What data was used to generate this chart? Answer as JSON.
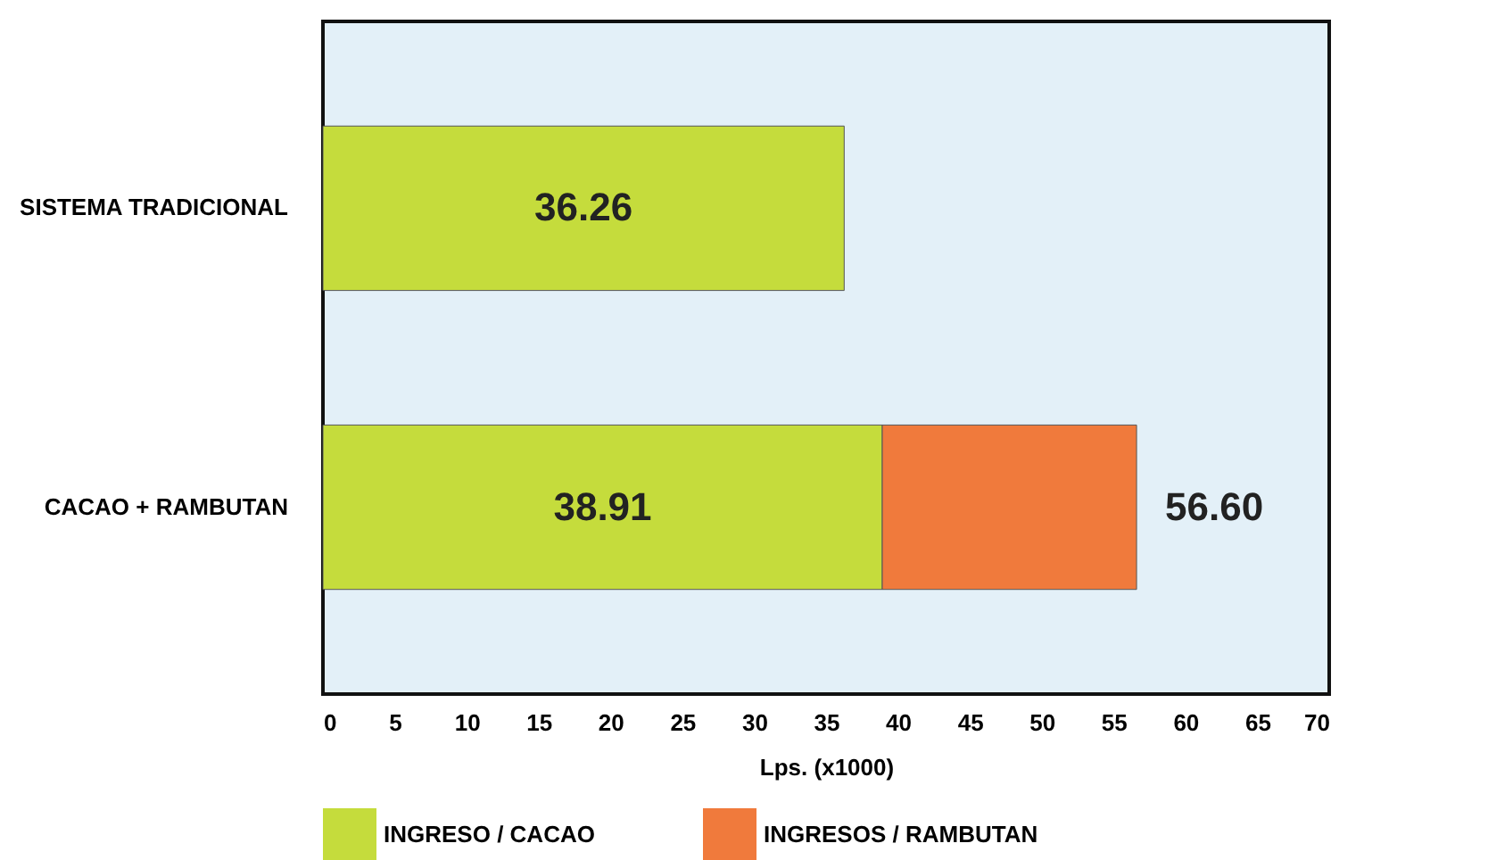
{
  "chart_data": {
    "type": "bar",
    "orientation": "horizontal",
    "stacked": true,
    "xlabel": "Lps. (x1000)",
    "categories": [
      "SISTEMA TRADICIONAL",
      "CACAO + RAMBUTAN"
    ],
    "series": [
      {
        "name": "INGRESO / CACAO",
        "color": "#c5dc3c",
        "values": [
          36.26,
          38.91
        ],
        "value_labels": [
          "36.26",
          "38.91"
        ]
      },
      {
        "name": "INGRESOS / RAMBUTAN",
        "color": "#f07a3c",
        "values": [
          null,
          17.69
        ]
      }
    ],
    "totals": [
      null,
      "56.60"
    ],
    "xlim": [
      0,
      70
    ],
    "xticks": [
      0,
      5,
      10,
      15,
      20,
      25,
      30,
      35,
      40,
      45,
      50,
      55,
      60,
      65,
      70
    ],
    "grid": false,
    "legend": "bottom"
  }
}
